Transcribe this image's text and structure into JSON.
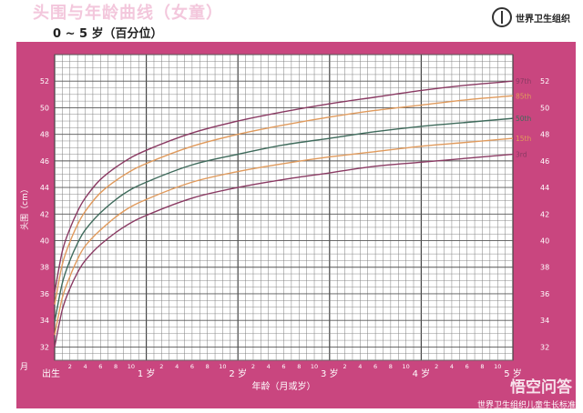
{
  "header": {
    "title": "头围与年龄曲线（女童）",
    "subtitle": "0 ~ 5 岁（百分位）",
    "org": "世界卫生组织"
  },
  "footer": {
    "credit": "世界卫生组织儿童生长标准",
    "watermark": "悟空问答"
  },
  "colors": {
    "frame": "#c9467f",
    "grid": "#7d7d7d",
    "p97": "#8a3a63",
    "p85": "#e09a5c",
    "p50": "#3f6b5c",
    "p15": "#e09a5c",
    "p3": "#8a3a63"
  },
  "chart_data": {
    "type": "line",
    "title": "头围与年龄曲线（女童）",
    "subtitle": "0 ~ 5 岁（百分位）",
    "xlabel": "年龄（月或岁）",
    "ylabel": "头围（cm）",
    "x_unit_label": "月",
    "xlim": [
      0,
      60
    ],
    "ylim": [
      31,
      54
    ],
    "grid": true,
    "y_ticks": [
      32,
      34,
      36,
      38,
      40,
      42,
      44,
      46,
      48,
      50,
      52
    ],
    "x_major_ticks": [
      {
        "month": 0,
        "label": "出生"
      },
      {
        "month": 12,
        "label": "1 岁"
      },
      {
        "month": 24,
        "label": "2 岁"
      },
      {
        "month": 36,
        "label": "3 岁"
      },
      {
        "month": 48,
        "label": "4 岁"
      },
      {
        "month": 60,
        "label": "5 岁"
      }
    ],
    "x_minor_labels": [
      "2",
      "4",
      "6",
      "8",
      "10"
    ],
    "x": [
      0,
      1,
      2,
      3,
      4,
      6,
      9,
      12,
      18,
      24,
      30,
      36,
      42,
      48,
      54,
      60
    ],
    "series": [
      {
        "name": "97th",
        "colorKey": "p97",
        "values": [
          36.1,
          39.2,
          40.9,
          42.2,
          43.2,
          44.6,
          45.9,
          46.8,
          48.1,
          49.0,
          49.7,
          50.3,
          50.8,
          51.3,
          51.7,
          52.0
        ]
      },
      {
        "name": "85th",
        "colorKey": "p85",
        "values": [
          35.2,
          38.2,
          39.9,
          41.2,
          42.2,
          43.6,
          44.9,
          45.8,
          47.1,
          48.0,
          48.7,
          49.3,
          49.8,
          50.2,
          50.6,
          50.9
        ]
      },
      {
        "name": "50th",
        "colorKey": "p50",
        "values": [
          33.9,
          36.8,
          38.5,
          39.8,
          40.8,
          42.1,
          43.5,
          44.4,
          45.7,
          46.5,
          47.2,
          47.7,
          48.2,
          48.6,
          48.9,
          49.2
        ]
      },
      {
        "name": "15th",
        "colorKey": "p15",
        "values": [
          32.9,
          35.7,
          37.3,
          38.6,
          39.6,
          40.8,
          42.2,
          43.1,
          44.4,
          45.2,
          45.8,
          46.3,
          46.7,
          47.1,
          47.4,
          47.7
        ]
      },
      {
        "name": "3rd",
        "colorKey": "p3",
        "values": [
          32.0,
          34.8,
          36.4,
          37.6,
          38.5,
          39.7,
          41.0,
          41.9,
          43.2,
          44.0,
          44.6,
          45.1,
          45.6,
          45.9,
          46.2,
          46.5
        ]
      }
    ]
  }
}
